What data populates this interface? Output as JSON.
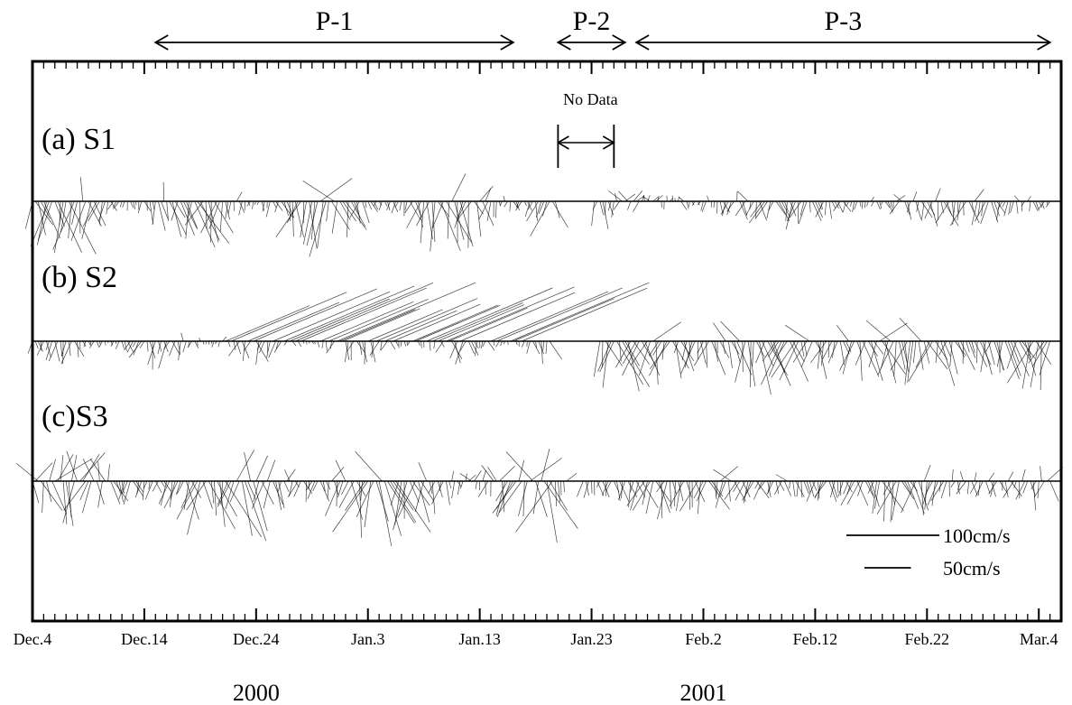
{
  "chart_data": {
    "type": "stick-vector time series",
    "x_axis": {
      "unit": "days",
      "tick_labels": [
        "Dec.4",
        "Dec.14",
        "Dec.24",
        "Jan.3",
        "Jan.13",
        "Jan.23",
        "Feb.2",
        "Feb.12",
        "Feb.22",
        "Mar.4"
      ],
      "year_labels": [
        {
          "text": "2000",
          "under": "Dec.24"
        },
        {
          "text": "2001",
          "under": "Feb.2"
        }
      ],
      "range_days": [
        0,
        92
      ]
    },
    "periods": [
      {
        "label": "P-1",
        "start_day": 11,
        "end_day": 43
      },
      {
        "label": "P-2",
        "start_day": 47,
        "end_day": 53
      },
      {
        "label": "P-3",
        "start_day": 54,
        "end_day": 91
      }
    ],
    "no_data": {
      "label": "No Data",
      "start_day": 47,
      "end_day": 52,
      "series": "S1"
    },
    "series": [
      {
        "name": "(a) S1",
        "gaps": [
          [
            47,
            50
          ]
        ]
      },
      {
        "name": "(b) S2",
        "gaps": [
          [
            46.5,
            50.5
          ]
        ]
      },
      {
        "name": "(c)S3",
        "gaps": [
          [
            48,
            49
          ]
        ]
      }
    ],
    "scale_legend": [
      {
        "label": "100cm/s",
        "length_cm_s": 100
      },
      {
        "label": "50cm/s",
        "length_cm_s": 50
      }
    ]
  }
}
